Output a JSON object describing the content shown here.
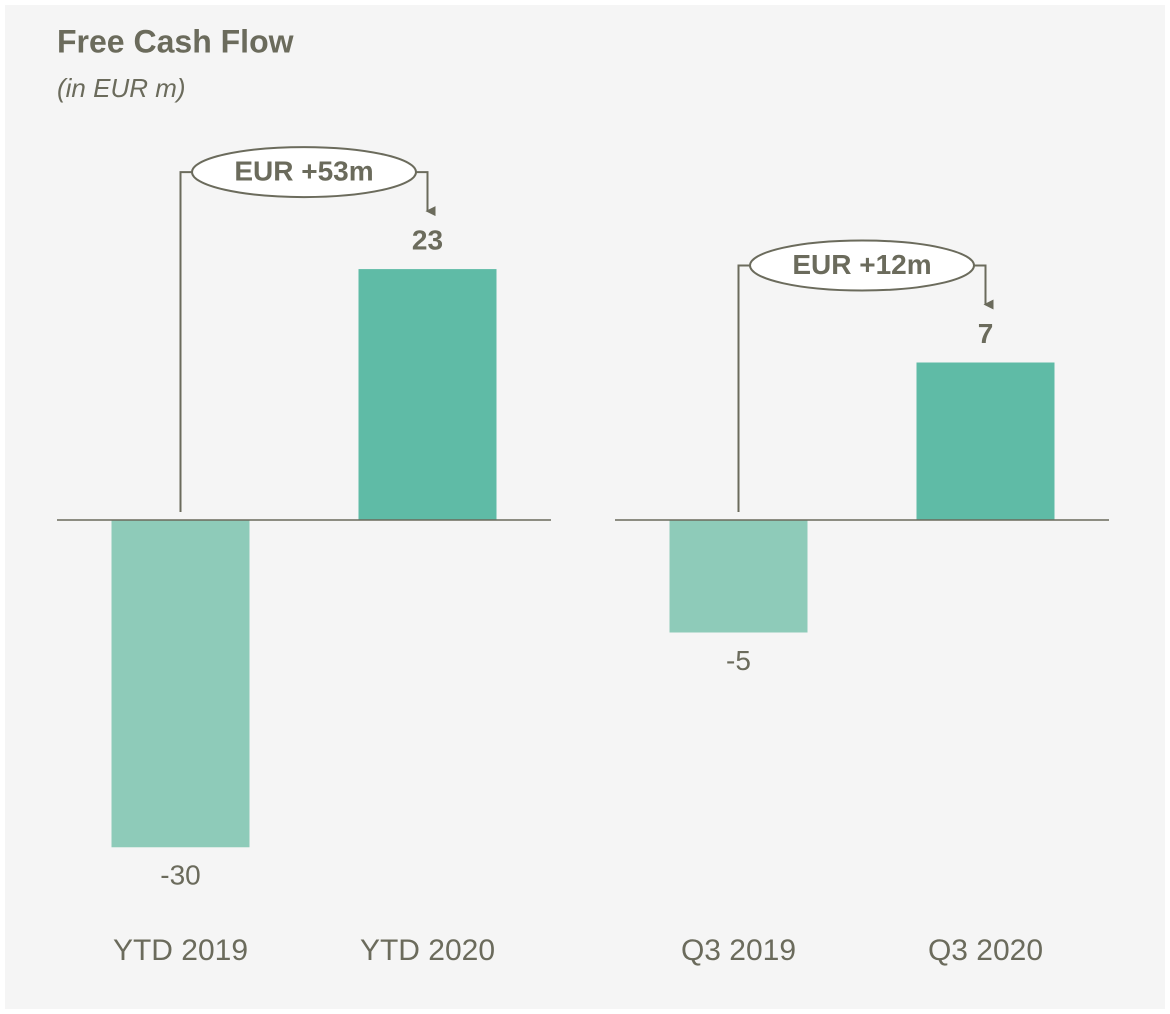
{
  "chart_data": [
    {
      "type": "bar",
      "title": "Free Cash Flow",
      "subtitle": "(in EUR m)",
      "categories": [
        "YTD 2019",
        "YTD 2020"
      ],
      "values": [
        -30,
        23
      ],
      "colors": [
        "#8ecbb9",
        "#5fbba6"
      ],
      "ylim": [
        -33,
        33
      ],
      "annotation": "EUR +53m"
    },
    {
      "type": "bar",
      "categories": [
        "Q3 2019",
        "Q3 2020"
      ],
      "values": [
        -5,
        7
      ],
      "colors": [
        "#8ecbb9",
        "#5fbba6"
      ],
      "ylim": [
        -16,
        16
      ],
      "annotation": "EUR +12m"
    }
  ]
}
